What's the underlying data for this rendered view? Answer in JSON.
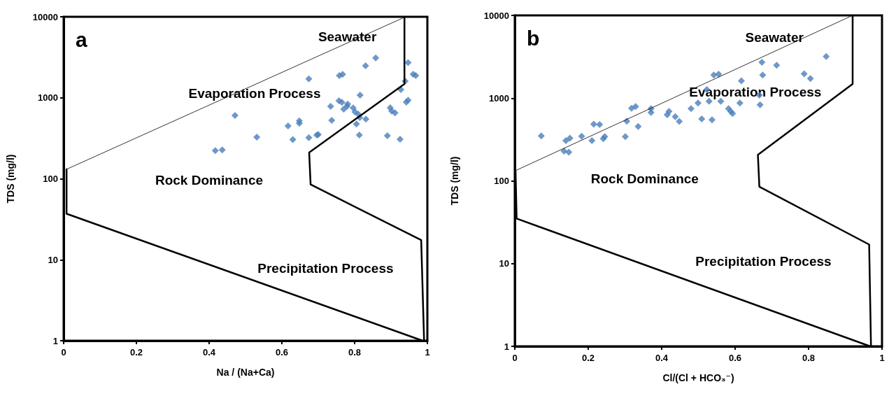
{
  "chart_data": [
    {
      "type": "scatter",
      "title": "a",
      "xlabel": "Na / (Na+Ca)",
      "ylabel": "TDS (mg/l)",
      "log": "y",
      "grid": false,
      "xlim": [
        0,
        1
      ],
      "xticks": [
        0,
        0.2,
        0.4,
        0.6,
        0.8,
        1
      ],
      "ylim": [
        1,
        10000
      ],
      "yticks": [
        1,
        10,
        100,
        1000,
        10000
      ],
      "annotations": [
        "Seawater",
        "Evaporation Process",
        "Rock Dominance",
        "Precipitation Process"
      ],
      "series": [
        {
          "type": "scatter",
          "marker": "diamond",
          "color": "#4a7ebb",
          "x": [
            0.417,
            0.436,
            0.471,
            0.531,
            0.617,
            0.63,
            0.648,
            0.648,
            0.674,
            0.674,
            0.696,
            0.7,
            0.734,
            0.737,
            0.758,
            0.767,
            0.757,
            0.765,
            0.77,
            0.779,
            0.781,
            0.796,
            0.801,
            0.81,
            0.805,
            0.814,
            0.813,
            0.815,
            0.83,
            0.831,
            0.858,
            0.89,
            0.898,
            0.902,
            0.911,
            0.927,
            0.925,
            0.939,
            0.942,
            0.947,
            0.947,
            0.961,
            0.968
          ],
          "values": [
            223,
            227,
            604,
            327,
            450,
            305,
            519,
            483,
            1711,
            322,
            347,
            352,
            785,
            527,
            1883,
            1943,
            920,
            877,
            724,
            785,
            835,
            748,
            670,
            628,
            475,
            570,
            346,
            1079,
            2488,
            545,
            3105,
            340,
            754,
            685,
            653,
            1264,
            307,
            1606,
            883,
            933,
            2714,
            1958,
            1883
          ]
        },
        {
          "type": "line",
          "marker": "none",
          "color": "#000000",
          "x": [
            0.008,
            0.94
          ],
          "values": [
            131,
            10000
          ]
        },
        {
          "type": "line",
          "marker": "none",
          "color": "#000000",
          "x": [
            0.008,
            0.008,
            0.987
          ],
          "values": [
            131,
            37,
            1
          ]
        },
        {
          "type": "line",
          "marker": "none",
          "color": "#000000",
          "x": [
            0.937,
            0.937,
            0.675,
            0.679,
            0.983,
            0.991
          ],
          "values": [
            10000,
            1483,
            211,
            85,
            17.5,
            1
          ]
        }
      ]
    },
    {
      "type": "scatter",
      "title": "b",
      "xlabel": "Cl/(Cl + HCO₃⁻)",
      "ylabel": "TDS (mg/l)",
      "log": "y",
      "grid": false,
      "xlim": [
        0,
        1
      ],
      "xticks": [
        0,
        0.2,
        0.4,
        0.6,
        0.8,
        1
      ],
      "ylim": [
        1,
        10000
      ],
      "yticks": [
        1,
        10,
        100,
        1000,
        10000
      ],
      "annotations": [
        "Seawater",
        "Evaporation Process",
        "Rock Dominance",
        "Precipitation Process"
      ],
      "series": [
        {
          "type": "scatter",
          "marker": "diamond",
          "color": "#4a7ebb",
          "x": [
            0.072,
            0.134,
            0.147,
            0.139,
            0.15,
            0.182,
            0.21,
            0.215,
            0.231,
            0.241,
            0.245,
            0.301,
            0.305,
            0.318,
            0.329,
            0.336,
            0.371,
            0.371,
            0.415,
            0.42,
            0.437,
            0.448,
            0.48,
            0.499,
            0.509,
            0.523,
            0.529,
            0.537,
            0.542,
            0.555,
            0.561,
            0.582,
            0.588,
            0.593,
            0.613,
            0.617,
            0.666,
            0.668,
            0.673,
            0.675,
            0.713,
            0.788,
            0.805,
            0.848
          ],
          "values": [
            349,
            229,
            222,
            306,
            328,
            346,
            306,
            484,
            480,
            323,
            343,
            343,
            527,
            754,
            790,
            455,
            748,
            671,
            631,
            692,
            597,
            524,
            748,
            874,
            561,
            1271,
            916,
            548,
            1905,
            1950,
            916,
            748,
            692,
            650,
            874,
            1618,
            1087,
            830,
            2719,
            1905,
            2500,
            1963,
            1722,
            3191
          ]
        },
        {
          "type": "line",
          "marker": "none",
          "color": "#000000",
          "x": [
            0.002,
            0.92
          ],
          "values": [
            133,
            10000
          ]
        },
        {
          "type": "line",
          "marker": "none",
          "color": "#000000",
          "x": [
            0.002,
            0.005,
            0.968
          ],
          "values": [
            133,
            35,
            1
          ]
        },
        {
          "type": "line",
          "marker": "none",
          "color": "#000000",
          "x": [
            0.92,
            0.92,
            0.662,
            0.666,
            0.965,
            0.97
          ],
          "values": [
            10000,
            1485,
            207,
            85,
            17,
            1
          ]
        }
      ]
    }
  ]
}
